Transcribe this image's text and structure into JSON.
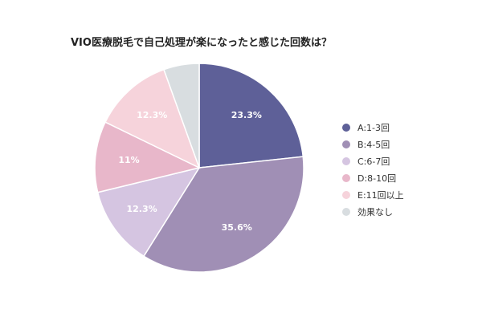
{
  "chart_data": {
    "type": "pie",
    "title": "VIO医療脱毛で自己処理が楽になったと感じた回数は？",
    "slices": [
      {
        "label": "A:1-3回",
        "value": 23.3,
        "display": "23.3%",
        "color": "#5e6098"
      },
      {
        "label": "B:4-5回",
        "value": 35.6,
        "display": "35.6%",
        "color": "#a08fb5"
      },
      {
        "label": "C:6-7回",
        "value": 12.3,
        "display": "12.3%",
        "color": "#d5c5e1"
      },
      {
        "label": "D:8-10回",
        "value": 11.0,
        "display": "11%",
        "color": "#e8b7ca"
      },
      {
        "label": "E:11回以上",
        "value": 12.3,
        "display": "12.3%",
        "color": "#f6d3db"
      },
      {
        "label": "効果なし",
        "value": 5.5,
        "display": "",
        "color": "#d8dde0"
      }
    ],
    "start_angle_deg": 0,
    "direction": "clockwise",
    "legend_position": "right"
  }
}
